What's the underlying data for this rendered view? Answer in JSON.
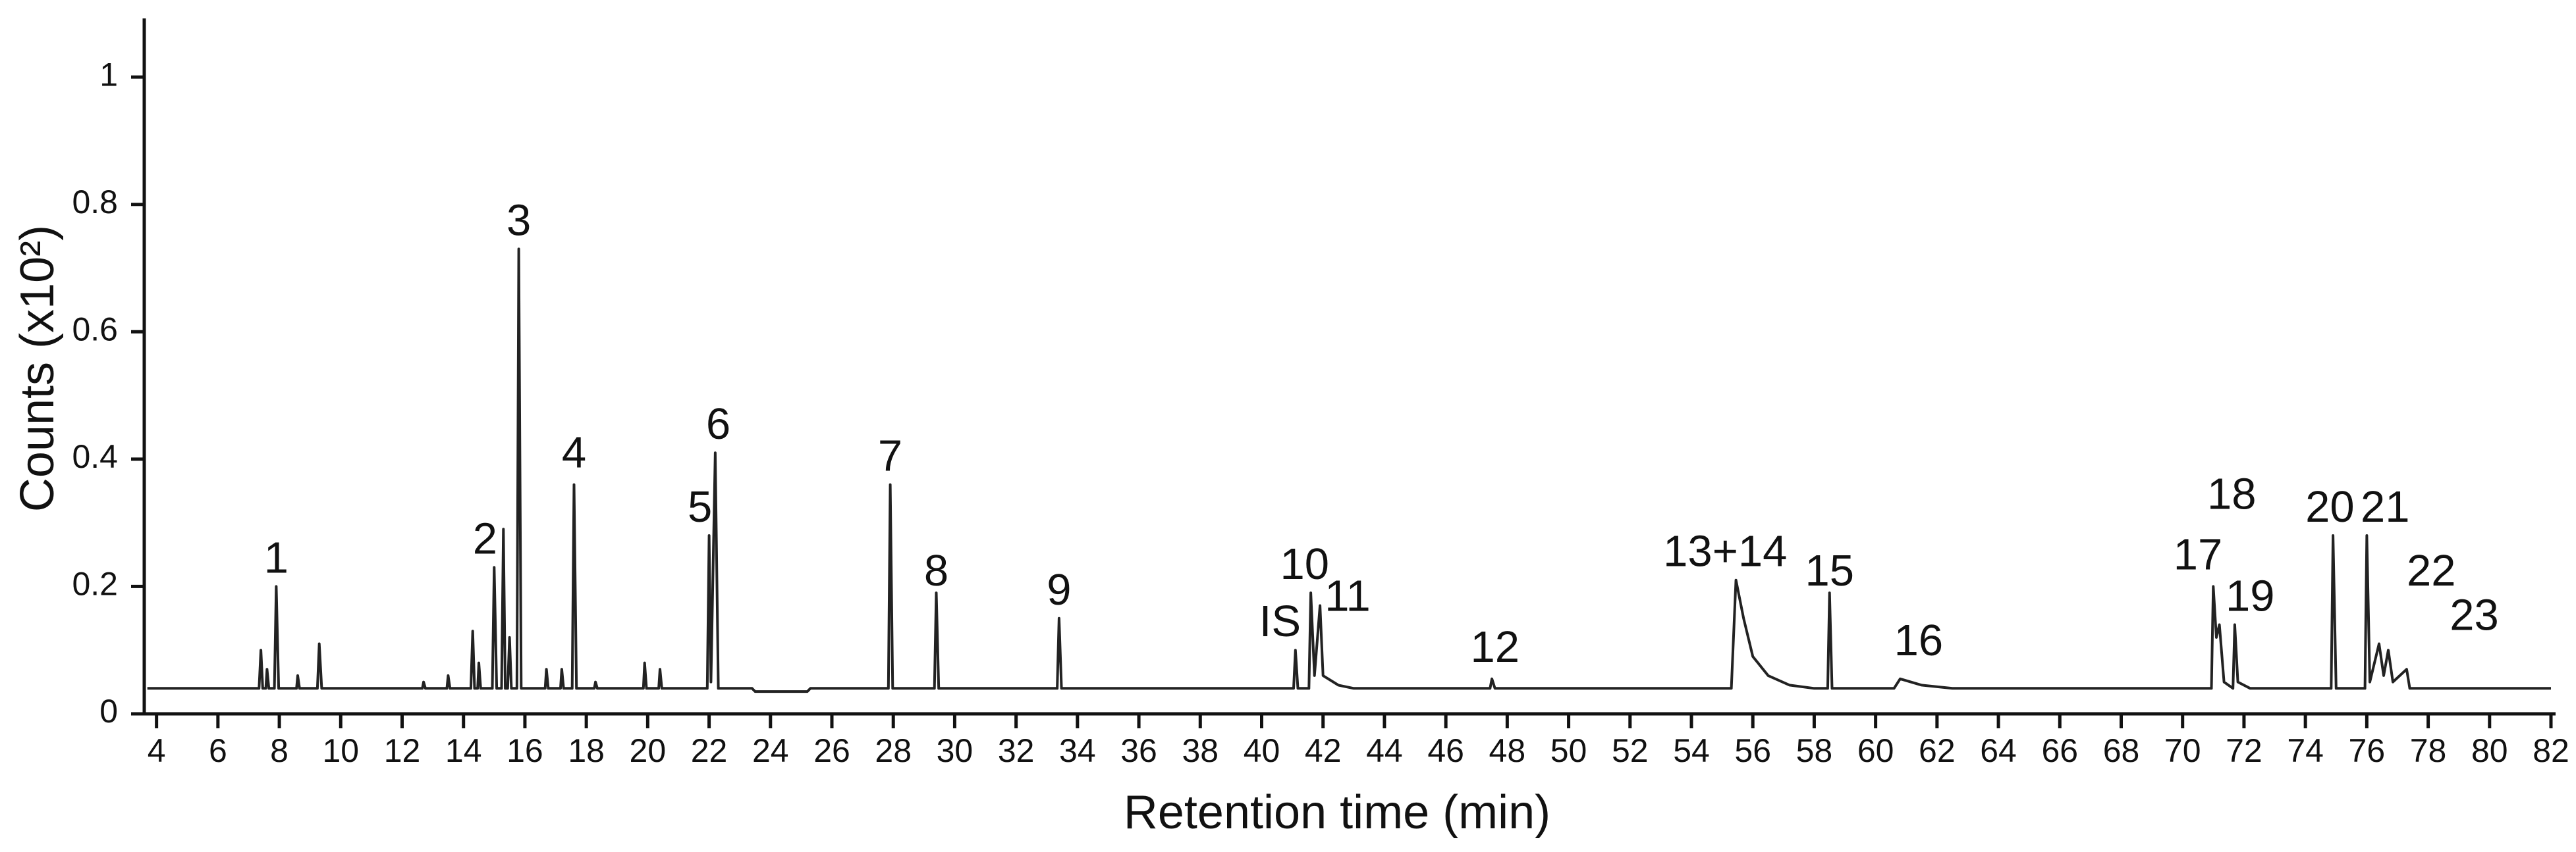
{
  "chart_data": {
    "type": "line",
    "xlabel": "Retention time (min)",
    "ylabel": "Counts (x10²)",
    "xlim": [
      3.6,
      82
    ],
    "ylim": [
      0,
      1.09
    ],
    "xticks": [
      4,
      6,
      8,
      10,
      12,
      14,
      16,
      18,
      20,
      22,
      24,
      26,
      28,
      30,
      32,
      34,
      36,
      38,
      40,
      42,
      44,
      46,
      48,
      50,
      52,
      54,
      56,
      58,
      60,
      62,
      64,
      66,
      68,
      70,
      72,
      74,
      76,
      78,
      80,
      82
    ],
    "yticks": [
      0,
      0.2,
      0.4,
      0.6,
      0.8,
      1
    ],
    "color": "#222222",
    "x": [
      3.7,
      7.34,
      7.4,
      7.46,
      7.56,
      7.6,
      7.66,
      7.84,
      7.9,
      7.98,
      8.56,
      8.6,
      8.66,
      9.24,
      9.3,
      9.38,
      12.66,
      12.7,
      12.76,
      13.46,
      13.5,
      13.56,
      14.24,
      14.3,
      14.36,
      14.46,
      14.5,
      14.56,
      14.94,
      15.0,
      15.08,
      15.24,
      15.3,
      15.36,
      15.44,
      15.5,
      15.56,
      15.74,
      15.8,
      15.88,
      16.66,
      16.7,
      16.76,
      17.16,
      17.2,
      17.26,
      17.54,
      17.6,
      17.68,
      18.26,
      18.3,
      18.36,
      19.86,
      19.9,
      19.96,
      20.36,
      20.4,
      20.46,
      21.94,
      22.0,
      22.06,
      22.2,
      22.3,
      23.4,
      23.5,
      25.2,
      25.3,
      27.84,
      27.9,
      27.98,
      29.34,
      29.4,
      29.48,
      33.34,
      33.4,
      33.48,
      41.04,
      41.1,
      41.18,
      41.54,
      41.6,
      41.72,
      41.9,
      42.0,
      42.5,
      43,
      47.44,
      47.5,
      47.6,
      55.3,
      55.45,
      55.7,
      56.0,
      56.5,
      57.2,
      58,
      58.44,
      58.5,
      58.58,
      60.6,
      60.8,
      61.5,
      62.5,
      70.94,
      71.0,
      71.1,
      71.2,
      71.35,
      71.64,
      71.7,
      71.8,
      72.2,
      74.84,
      74.9,
      75.0,
      75.94,
      76.0,
      76.1,
      76.4,
      76.55,
      76.7,
      76.85,
      77.3,
      77.4,
      82
    ],
    "y": [
      0.04,
      0.04,
      0.1,
      0.04,
      0.04,
      0.07,
      0.04,
      0.04,
      0.2,
      0.04,
      0.04,
      0.06,
      0.04,
      0.04,
      0.11,
      0.04,
      0.04,
      0.05,
      0.04,
      0.04,
      0.06,
      0.04,
      0.04,
      0.13,
      0.04,
      0.04,
      0.08,
      0.04,
      0.04,
      0.23,
      0.04,
      0.04,
      0.29,
      0.04,
      0.04,
      0.12,
      0.04,
      0.04,
      0.73,
      0.04,
      0.04,
      0.07,
      0.04,
      0.04,
      0.07,
      0.04,
      0.04,
      0.36,
      0.04,
      0.04,
      0.05,
      0.04,
      0.04,
      0.08,
      0.04,
      0.04,
      0.07,
      0.04,
      0.04,
      0.28,
      0.05,
      0.41,
      0.04,
      0.04,
      0.035,
      0.035,
      0.04,
      0.04,
      0.36,
      0.04,
      0.04,
      0.19,
      0.04,
      0.04,
      0.15,
      0.04,
      0.04,
      0.1,
      0.04,
      0.04,
      0.19,
      0.06,
      0.17,
      0.06,
      0.045,
      0.04,
      0.04,
      0.055,
      0.04,
      0.04,
      0.21,
      0.15,
      0.09,
      0.06,
      0.045,
      0.04,
      0.04,
      0.19,
      0.04,
      0.04,
      0.055,
      0.045,
      0.04,
      0.04,
      0.2,
      0.12,
      0.14,
      0.05,
      0.04,
      0.14,
      0.05,
      0.04,
      0.04,
      0.28,
      0.04,
      0.04,
      0.28,
      0.05,
      0.11,
      0.06,
      0.1,
      0.05,
      0.07,
      0.04,
      0.04
    ],
    "annotations": [
      {
        "text": "1",
        "x": 7.9,
        "y": 0.24
      },
      {
        "text": "2",
        "x": 14.7,
        "y": 0.27
      },
      {
        "text": "3",
        "x": 15.8,
        "y": 0.77
      },
      {
        "text": "4",
        "x": 17.6,
        "y": 0.405
      },
      {
        "text": "5",
        "x": 21.7,
        "y": 0.32
      },
      {
        "text": "6",
        "x": 22.3,
        "y": 0.45
      },
      {
        "text": "7",
        "x": 27.9,
        "y": 0.4
      },
      {
        "text": "8",
        "x": 29.4,
        "y": 0.22
      },
      {
        "text": "9",
        "x": 33.4,
        "y": 0.19
      },
      {
        "text": "IS",
        "x": 40.6,
        "y": 0.14
      },
      {
        "text": "10",
        "x": 41.4,
        "y": 0.23
      },
      {
        "text": "11",
        "x": 42.8,
        "y": 0.18
      },
      {
        "text": "12",
        "x": 47.6,
        "y": 0.1
      },
      {
        "text": "13+14",
        "x": 55.1,
        "y": 0.25
      },
      {
        "text": "15",
        "x": 58.5,
        "y": 0.22
      },
      {
        "text": "16",
        "x": 61.4,
        "y": 0.11
      },
      {
        "text": "17",
        "x": 70.5,
        "y": 0.245
      },
      {
        "text": "18",
        "x": 71.6,
        "y": 0.34
      },
      {
        "text": "19",
        "x": 72.2,
        "y": 0.18
      },
      {
        "text": "20",
        "x": 74.8,
        "y": 0.32
      },
      {
        "text": "21",
        "x": 76.6,
        "y": 0.32
      },
      {
        "text": "22",
        "x": 78.1,
        "y": 0.22
      },
      {
        "text": "23",
        "x": 79.5,
        "y": 0.15
      }
    ]
  }
}
